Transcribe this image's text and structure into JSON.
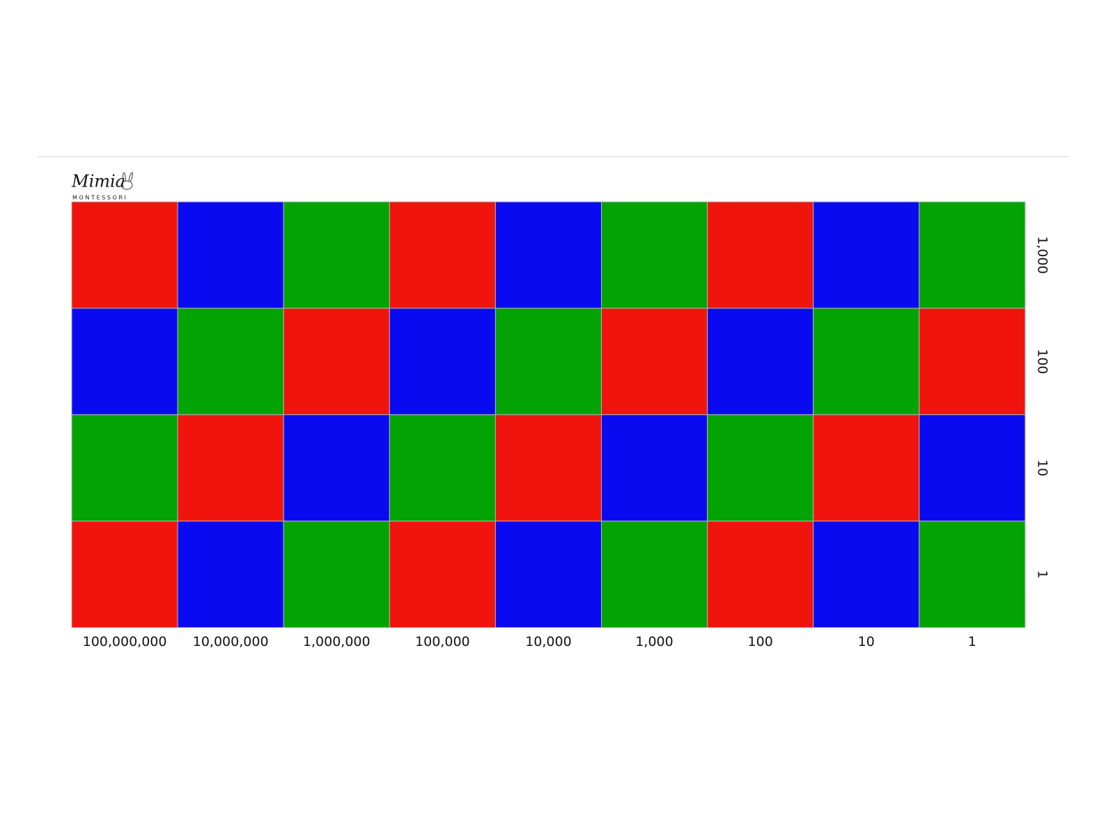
{
  "logo": {
    "script": "Mimia",
    "subtitle": "MONTESSORI"
  },
  "columns": [
    "100,000,000",
    "10,000,000",
    "1,000,000",
    "100,000",
    "10,000",
    "1,000",
    "100",
    "10",
    "1"
  ],
  "rows": [
    "1,000",
    "100",
    "10",
    "1"
  ],
  "cells": [
    [
      "#f0140c",
      "#0a0af0",
      "#03a303",
      "#f0140c",
      "#0a0af0",
      "#03a303",
      "#f0140c",
      "#0a0af0",
      "#03a303"
    ],
    [
      "#0a0af0",
      "#03a303",
      "#f0140c",
      "#0a0af0",
      "#03a303",
      "#f0140c",
      "#0a0af0",
      "#03a303",
      "#f0140c"
    ],
    [
      "#03a303",
      "#f0140c",
      "#0a0af0",
      "#03a303",
      "#f0140c",
      "#0a0af0",
      "#03a303",
      "#f0140c",
      "#0a0af0"
    ],
    [
      "#f0140c",
      "#0a0af0",
      "#03a303",
      "#f0140c",
      "#0a0af0",
      "#03a303",
      "#f0140c",
      "#0a0af0",
      "#03a303"
    ]
  ]
}
